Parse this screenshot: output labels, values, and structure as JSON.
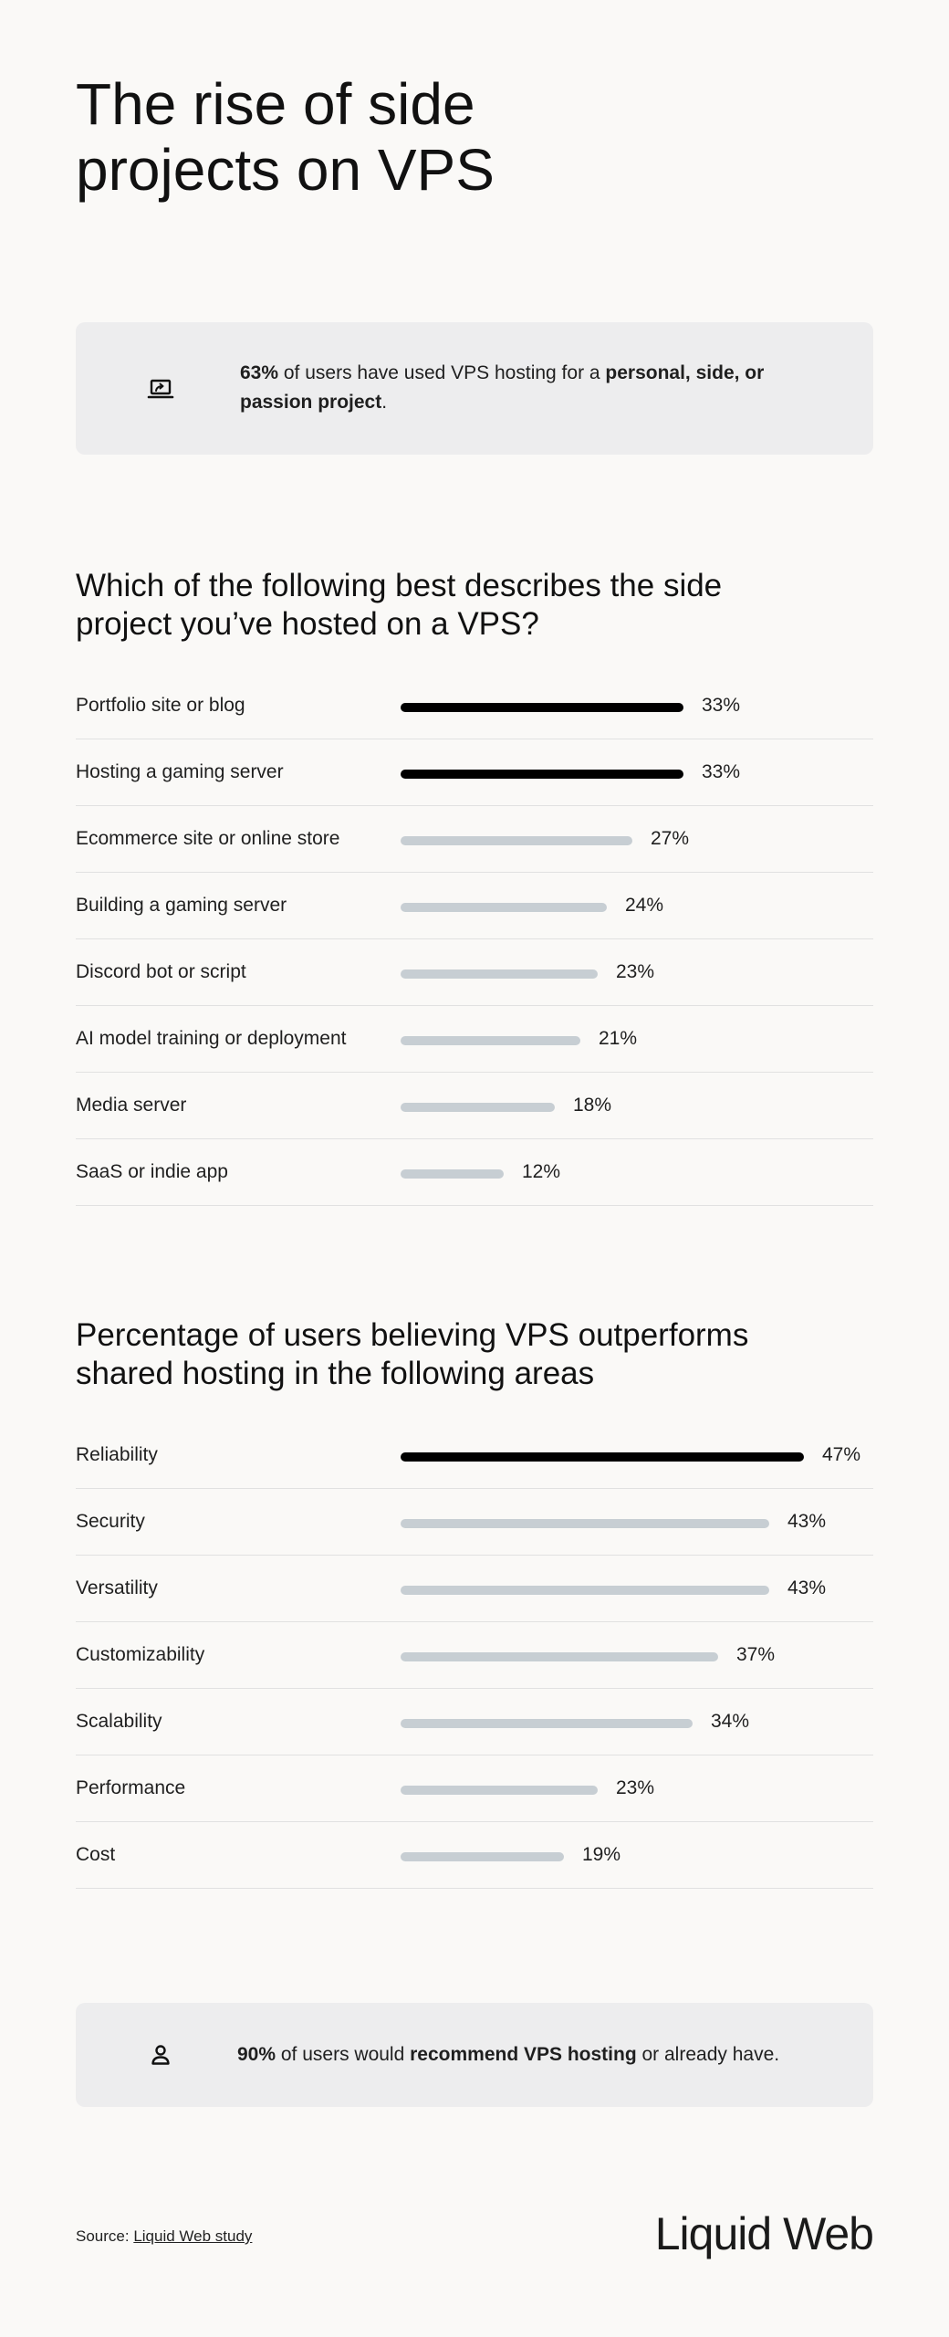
{
  "title": "The rise of side projects on VPS",
  "callout1": {
    "icon": "laptop-share-icon",
    "stat": "63%",
    "text_a": " of users have used VPS hosting for a ",
    "bold": "personal, side, or passion project",
    "text_b": "."
  },
  "callout2": {
    "icon": "user-icon",
    "stat": "90%",
    "text_a": " of users would ",
    "bold": "recommend VPS hosting",
    "text_b": " or already have."
  },
  "chart_data": [
    {
      "type": "bar",
      "orientation": "horizontal",
      "title": "Which of the following best describes the side project you’ve hosted on a VPS?",
      "categories": [
        "Portfolio site or blog",
        "Hosting a gaming server",
        "Ecommerce site or online store",
        "Building a gaming server",
        "Discord bot or script",
        "AI model training or deployment",
        "Media server",
        "SaaS or indie app"
      ],
      "values": [
        33,
        33,
        27,
        24,
        23,
        21,
        18,
        12
      ],
      "labels": [
        "33%",
        "33%",
        "27%",
        "24%",
        "23%",
        "21%",
        "18%",
        "12%"
      ],
      "highlight_color": "#000000",
      "bar_color": "#c7ced3"
    },
    {
      "type": "bar",
      "orientation": "horizontal",
      "title": "Percentage of users believing VPS outperforms shared hosting in the following areas",
      "categories": [
        "Reliability",
        "Security",
        "Versatility",
        "Customizability",
        "Scalability",
        "Performance",
        "Cost"
      ],
      "values": [
        47,
        43,
        43,
        37,
        34,
        23,
        19
      ],
      "labels": [
        "47%",
        "43%",
        "43%",
        "37%",
        "34%",
        "23%",
        "19%"
      ],
      "highlight_color": "#000000",
      "bar_color": "#c7ced3"
    }
  ],
  "footer": {
    "source_prefix": "Source: ",
    "source_link": "Liquid Web study",
    "logo": "Liquid Web"
  }
}
